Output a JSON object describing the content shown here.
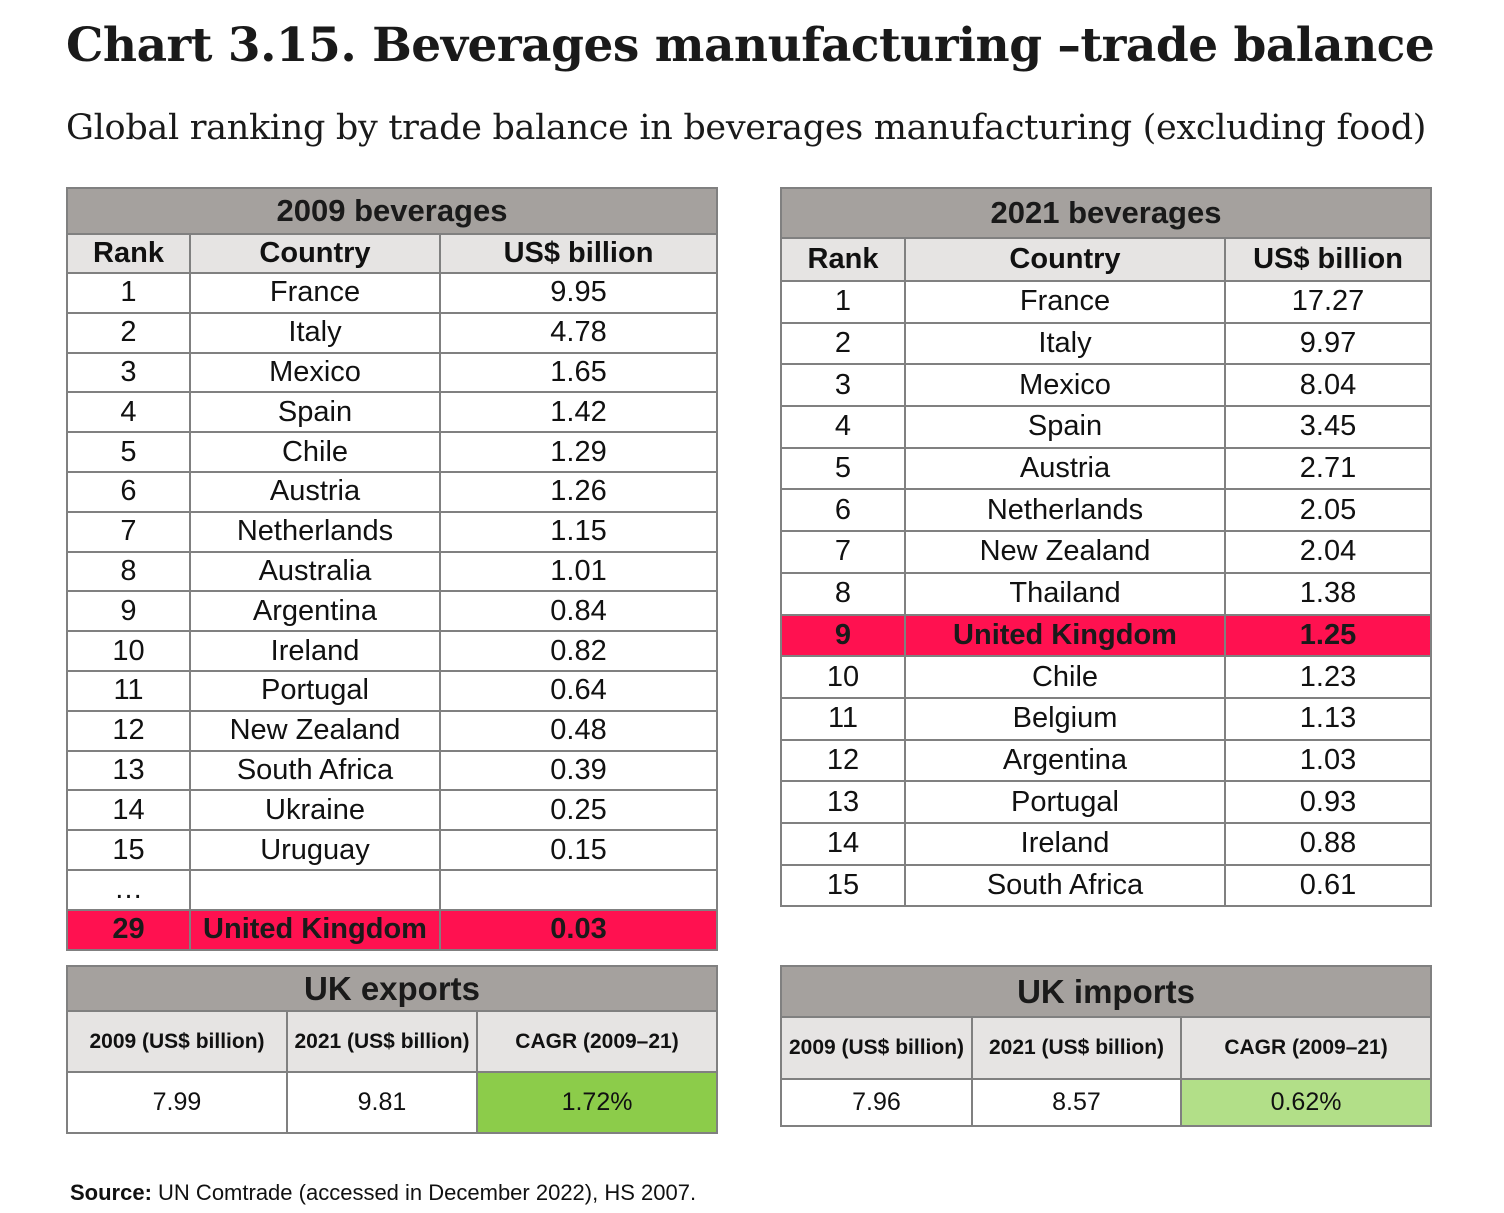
{
  "title": "Chart 3.15. Beverages manufacturing –trade balance",
  "subtitle": "Global ranking by trade balance in beverages manufacturing (excluding food)",
  "colors": {
    "header_bg": "#a5a19e",
    "column_header_bg": "#e6e4e3",
    "highlight": "#ff1150",
    "cagr_exports": "#8ccc4a",
    "cagr_imports": "#b2df88"
  },
  "chart_data": [
    {
      "type": "table",
      "title": "2009 beverages",
      "columns": [
        "Rank",
        "Country",
        "US$ billion"
      ],
      "rows": [
        {
          "rank": "1",
          "country": "France",
          "value": "9.95"
        },
        {
          "rank": "2",
          "country": "Italy",
          "value": "4.78"
        },
        {
          "rank": "3",
          "country": "Mexico",
          "value": "1.65"
        },
        {
          "rank": "4",
          "country": "Spain",
          "value": "1.42"
        },
        {
          "rank": "5",
          "country": "Chile",
          "value": "1.29"
        },
        {
          "rank": "6",
          "country": "Austria",
          "value": "1.26"
        },
        {
          "rank": "7",
          "country": "Netherlands",
          "value": "1.15"
        },
        {
          "rank": "8",
          "country": "Australia",
          "value": "1.01"
        },
        {
          "rank": "9",
          "country": "Argentina",
          "value": "0.84"
        },
        {
          "rank": "10",
          "country": "Ireland",
          "value": "0.82"
        },
        {
          "rank": "11",
          "country": "Portugal",
          "value": "0.64"
        },
        {
          "rank": "12",
          "country": "New Zealand",
          "value": "0.48"
        },
        {
          "rank": "13",
          "country": "South Africa",
          "value": "0.39"
        },
        {
          "rank": "14",
          "country": "Ukraine",
          "value": "0.25"
        },
        {
          "rank": "15",
          "country": "Uruguay",
          "value": "0.15"
        },
        {
          "rank": "…",
          "country": "",
          "value": ""
        },
        {
          "rank": "29",
          "country": "United Kingdom",
          "value": "0.03",
          "highlight": true
        }
      ]
    },
    {
      "type": "table",
      "title": "2021 beverages",
      "columns": [
        "Rank",
        "Country",
        "US$ billion"
      ],
      "rows": [
        {
          "rank": "1",
          "country": "France",
          "value": "17.27"
        },
        {
          "rank": "2",
          "country": "Italy",
          "value": "9.97"
        },
        {
          "rank": "3",
          "country": "Mexico",
          "value": "8.04"
        },
        {
          "rank": "4",
          "country": "Spain",
          "value": "3.45"
        },
        {
          "rank": "5",
          "country": "Austria",
          "value": "2.71"
        },
        {
          "rank": "6",
          "country": "Netherlands",
          "value": "2.05"
        },
        {
          "rank": "7",
          "country": "New Zealand",
          "value": "2.04"
        },
        {
          "rank": "8",
          "country": "Thailand",
          "value": "1.38"
        },
        {
          "rank": "9",
          "country": "United Kingdom",
          "value": "1.25",
          "highlight": true
        },
        {
          "rank": "10",
          "country": "Chile",
          "value": "1.23"
        },
        {
          "rank": "11",
          "country": "Belgium",
          "value": "1.13"
        },
        {
          "rank": "12",
          "country": "Argentina",
          "value": "1.03"
        },
        {
          "rank": "13",
          "country": "Portugal",
          "value": "0.93"
        },
        {
          "rank": "14",
          "country": "Ireland",
          "value": "0.88"
        },
        {
          "rank": "15",
          "country": "South Africa",
          "value": "0.61"
        }
      ]
    },
    {
      "type": "table",
      "title": "UK exports",
      "columns": [
        "2009 (US$ billion)",
        "2021 (US$ billion)",
        "CAGR (2009–21)"
      ],
      "values": [
        "7.99",
        "9.81",
        "1.72%"
      ]
    },
    {
      "type": "table",
      "title": "UK imports",
      "columns": [
        "2009 (US$ billion)",
        "2021 (US$ billion)",
        "CAGR (2009–21)"
      ],
      "values": [
        "7.96",
        "8.57",
        "0.62%"
      ]
    }
  ],
  "source": {
    "label": "Source:",
    "text": "UN Comtrade (accessed in December 2022), HS 2007."
  }
}
